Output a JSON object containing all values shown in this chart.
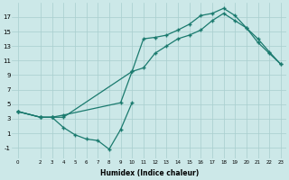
{
  "xlabel": "Humidex (Indice chaleur)",
  "ylabel": "",
  "background_color": "#cce8e8",
  "line_color": "#1a7a6e",
  "xlim": [
    -0.5,
    23.5
  ],
  "ylim": [
    -2.5,
    19
  ],
  "xticks": [
    0,
    2,
    3,
    4,
    5,
    6,
    7,
    8,
    9,
    10,
    11,
    12,
    13,
    14,
    15,
    16,
    17,
    18,
    19,
    20,
    21,
    22,
    23
  ],
  "yticks": [
    -1,
    1,
    3,
    5,
    7,
    9,
    11,
    13,
    15,
    17
  ],
  "line_max": {
    "x": [
      0,
      2,
      3,
      4,
      10,
      11,
      12,
      13,
      14,
      15,
      16,
      17,
      18,
      19,
      20,
      21,
      22,
      23
    ],
    "y": [
      4,
      3.2,
      3.2,
      3.2,
      9.5,
      14.0,
      14.2,
      14.5,
      15.2,
      16.0,
      17.2,
      17.5,
      18.2,
      17.2,
      15.5,
      14.0,
      12.2,
      10.5
    ]
  },
  "line_avg": {
    "x": [
      0,
      2,
      3,
      4,
      9,
      10,
      11,
      12,
      13,
      14,
      15,
      16,
      17,
      18,
      19,
      20,
      21,
      22,
      23
    ],
    "y": [
      4,
      3.2,
      3.2,
      3.5,
      5.2,
      9.5,
      10.0,
      12.0,
      13.0,
      14.0,
      14.5,
      15.2,
      16.5,
      17.5,
      16.5,
      15.5,
      13.5,
      12.0,
      10.5
    ]
  },
  "line_min": {
    "x": [
      0,
      2,
      3,
      4,
      5,
      6,
      7,
      8,
      9,
      10
    ],
    "y": [
      4,
      3.2,
      3.2,
      1.8,
      0.8,
      0.2,
      0.0,
      -1.2,
      1.5,
      5.2
    ]
  }
}
